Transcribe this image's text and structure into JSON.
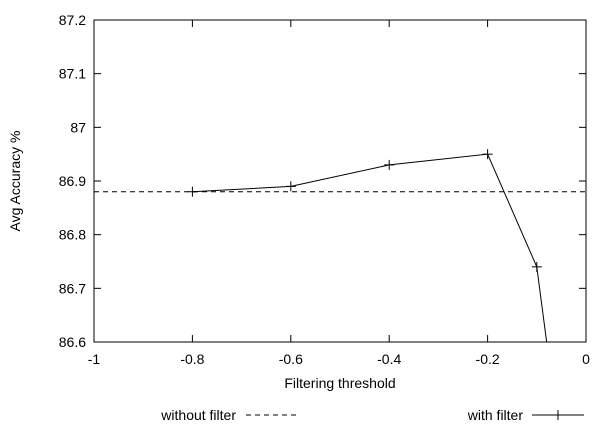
{
  "chart_data": {
    "type": "line",
    "xlabel": "Filtering threshold",
    "ylabel": "Avg Accuracy %",
    "xlim": [
      -1,
      0
    ],
    "ylim": [
      86.6,
      87.2
    ],
    "x_ticks": [
      "-1",
      "-0.8",
      "-0.6",
      "-0.4",
      "-0.2",
      "0"
    ],
    "y_ticks": [
      "86.6",
      "86.7",
      "86.8",
      "86.9",
      "87",
      "87.1",
      "87.2"
    ],
    "x_tick_values": [
      -1,
      -0.8,
      -0.6,
      -0.4,
      -0.2,
      0
    ],
    "y_tick_values": [
      86.6,
      86.7,
      86.8,
      86.9,
      87.0,
      87.1,
      87.2
    ],
    "grid": false,
    "legend_position": "bottom",
    "series": [
      {
        "name": "without filter",
        "style": "dashed",
        "color": "#000000",
        "x": [
          -1,
          0
        ],
        "y": [
          86.88,
          86.88
        ]
      },
      {
        "name": "with filter",
        "style": "solid-plus-markers",
        "color": "#000000",
        "x": [
          -0.8,
          -0.6,
          -0.4,
          -0.2,
          -0.1,
          -0.08
        ],
        "y": [
          86.88,
          86.89,
          86.93,
          86.95,
          86.74,
          86.6
        ],
        "marker_count": 5
      }
    ]
  }
}
